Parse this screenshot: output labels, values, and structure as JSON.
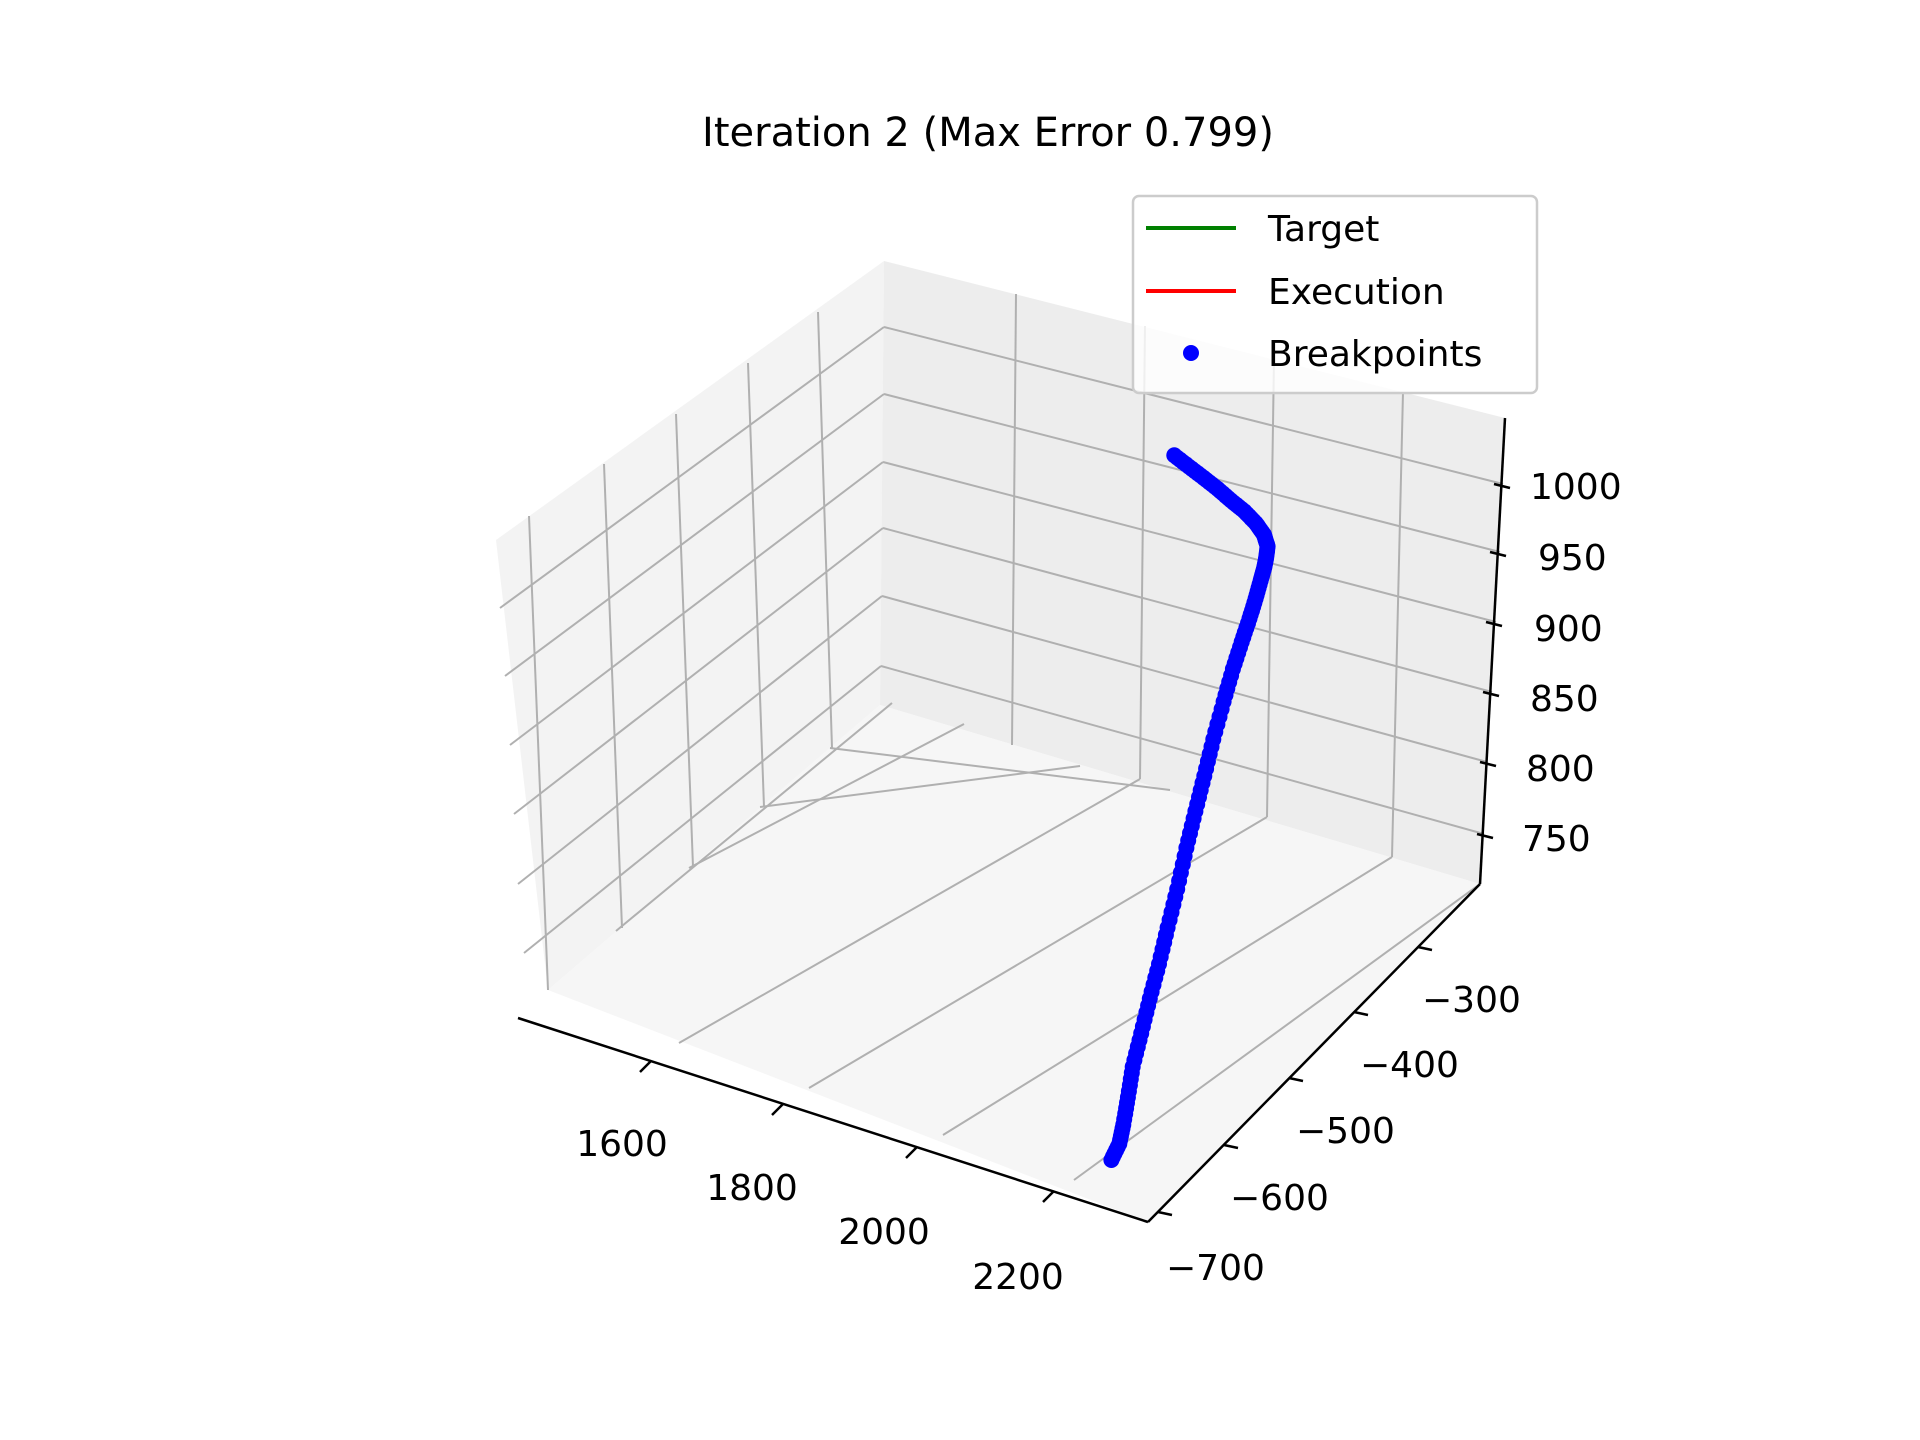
{
  "chart_data": {
    "type": "scatter",
    "projection": "3d",
    "title": "Iteration 2 (Max Error 0.799)",
    "xlabel": "",
    "ylabel": "",
    "zlabel": "",
    "x_ticks": [
      "1600",
      "1800",
      "2000",
      "2200"
    ],
    "y_ticks": [
      "−300",
      "−400",
      "−500",
      "−600",
      "−700"
    ],
    "z_ticks": [
      "1000",
      "950",
      "900",
      "850",
      "800",
      "750"
    ],
    "xlim": [
      1400,
      2350
    ],
    "ylim": [
      -750,
      -200
    ],
    "zlim": [
      720,
      1030
    ],
    "grid": true,
    "legend_position": "top-right",
    "legend": [
      {
        "label": "Target",
        "kind": "line",
        "color": "#008000"
      },
      {
        "label": "Execution",
        "kind": "line",
        "color": "#ff0000"
      },
      {
        "label": "Breakpoints",
        "kind": "marker",
        "color": "#0000ff"
      }
    ],
    "series": [
      {
        "name": "Target",
        "color": "#008000",
        "points": []
      },
      {
        "name": "Execution",
        "color": "#ff0000",
        "points": []
      },
      {
        "name": "Breakpoints",
        "color": "#0000ff",
        "description_of_path_only": "breakpoint samples along the executed trajectory",
        "points": [
          [
            2240,
            -690,
            721
          ],
          [
            2242,
            -680,
            728
          ],
          [
            2238,
            -670,
            736
          ],
          [
            2230,
            -655,
            747
          ],
          [
            2222,
            -640,
            760
          ],
          [
            2215,
            -620,
            773
          ],
          [
            2208,
            -600,
            787
          ],
          [
            2202,
            -580,
            801
          ],
          [
            2195,
            -560,
            816
          ],
          [
            2185,
            -535,
            830
          ],
          [
            2170,
            -505,
            843
          ],
          [
            2155,
            -475,
            853
          ],
          [
            2140,
            -445,
            862
          ],
          [
            2125,
            -415,
            872
          ],
          [
            2112,
            -385,
            883
          ],
          [
            2102,
            -360,
            893
          ],
          [
            2096,
            -340,
            902
          ],
          [
            2093,
            -325,
            911
          ],
          [
            2092,
            -315,
            920
          ],
          [
            2092,
            -308,
            929
          ],
          [
            2094,
            -305,
            937
          ],
          [
            2096,
            -305,
            944
          ],
          [
            2098,
            -306,
            952
          ],
          [
            2095,
            -310,
            961
          ],
          [
            2087,
            -316,
            970
          ],
          [
            2075,
            -323,
            979
          ],
          [
            2062,
            -332,
            988
          ],
          [
            2048,
            -340,
            997
          ],
          [
            2034,
            -349,
            1006
          ],
          [
            2019,
            -358,
            1015
          ],
          [
            2004,
            -367,
            1024
          ]
        ]
      }
    ]
  }
}
